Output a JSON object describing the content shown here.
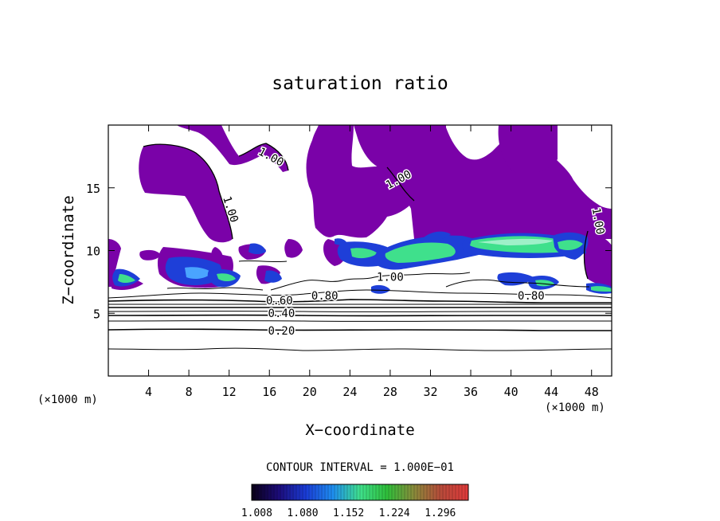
{
  "chart_data": {
    "type": "contour",
    "title": "saturation ratio",
    "xlabel": "X−coordinate",
    "ylabel": "Z−coordinate",
    "x_unit": "(×1000 m)",
    "y_unit": "(×1000 m)",
    "xlim": [
      0,
      50
    ],
    "ylim": [
      0,
      20
    ],
    "x_ticks": [
      "4",
      "8",
      "12",
      "16",
      "20",
      "24",
      "28",
      "32",
      "36",
      "40",
      "44",
      "48"
    ],
    "y_ticks": [
      "5",
      "10",
      "15"
    ],
    "contour_interval_text": "CONTOUR INTERVAL = 1.000E−01",
    "contour_labels": [
      {
        "text": "1.00",
        "x": 16.0,
        "z": 17.2,
        "rot": 28
      },
      {
        "text": "1.00",
        "x": 11.8,
        "z": 13.2,
        "rot": 72
      },
      {
        "text": "1.00",
        "x": 29.0,
        "z": 15.4,
        "rot": -28
      },
      {
        "text": "1.00",
        "x": 48.3,
        "z": 12.3,
        "rot": 80
      },
      {
        "text": "1.00",
        "x": 28.0,
        "z": 7.6,
        "rot": 0
      },
      {
        "text": "0.80",
        "x": 21.5,
        "z": 6.1,
        "rot": 0
      },
      {
        "text": "0.60",
        "x": 17.0,
        "z": 5.7,
        "rot": 0
      },
      {
        "text": "0.80",
        "x": 42.0,
        "z": 6.1,
        "rot": 0
      },
      {
        "text": "0.40",
        "x": 17.2,
        "z": 4.7,
        "rot": 0
      },
      {
        "text": "0.20",
        "x": 17.2,
        "z": 3.3,
        "rot": 0
      }
    ],
    "contour_levels_below": [
      0.2,
      0.3,
      0.4,
      0.5,
      0.6,
      0.7,
      0.8,
      0.9
    ],
    "colorbar": {
      "min": 1.0,
      "max": 1.34,
      "tick_labels": [
        "1.008",
        "1.080",
        "1.152",
        "1.224",
        "1.296"
      ],
      "colors": [
        "#0a0018",
        "#1c0c7a",
        "#1a3cd6",
        "#1e8ef0",
        "#3fe08c",
        "#2fbf3a",
        "#8a8a3a",
        "#b84a3a",
        "#e03a3a"
      ]
    },
    "fill_color_saturated": "#7a02a8"
  }
}
